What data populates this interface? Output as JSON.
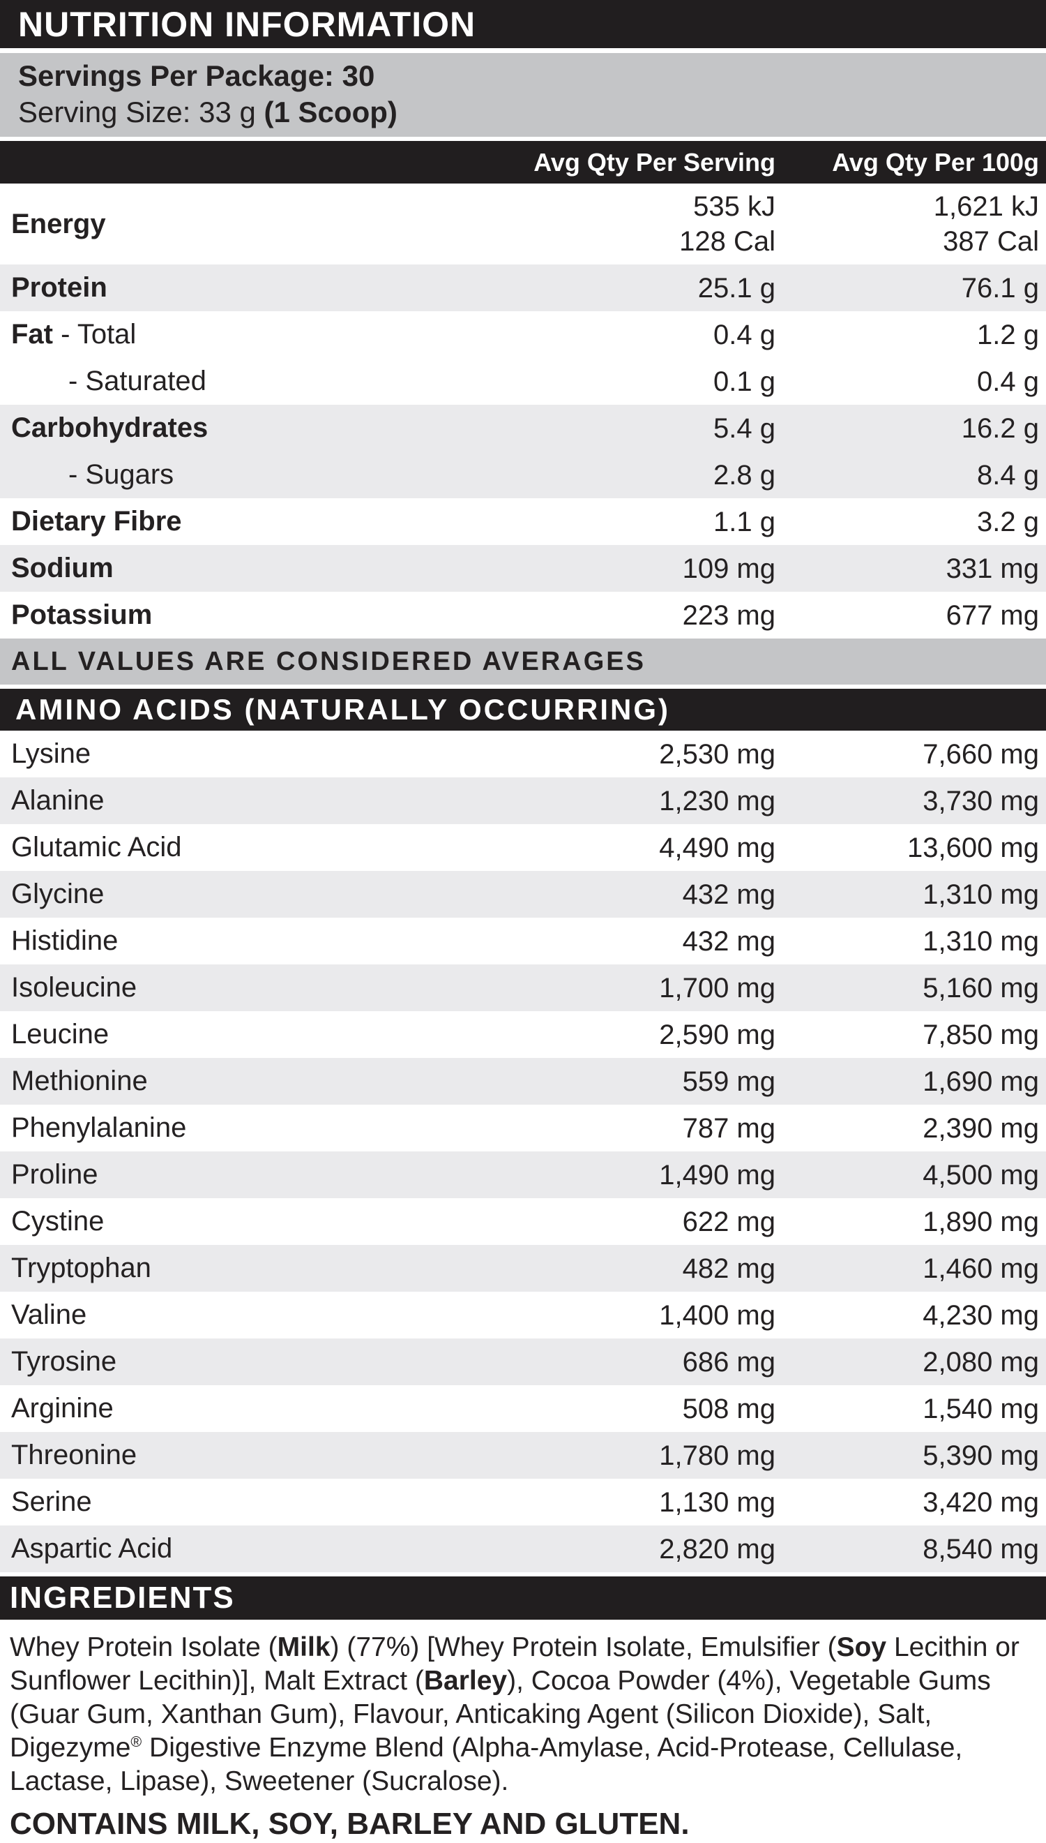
{
  "colors": {
    "band_black": "#211e1f",
    "band_gray": "#c4c5c7",
    "row_shade_gray": "#eaeaec",
    "text": "#242122",
    "background": "#ffffff"
  },
  "title": "NUTRITION INFORMATION",
  "serving_info": {
    "servings_line": [
      {
        "t": "Servings Per Package: 30",
        "b": true
      }
    ],
    "serving_size_line": [
      {
        "t": "Serving Size: 33 g "
      },
      {
        "t": "(1 Scoop)",
        "b": true
      }
    ]
  },
  "columns": {
    "per_serving": "Avg Qty Per Serving",
    "per_100g": "Avg Qty Per 100g"
  },
  "nutrients": [
    {
      "label": [
        {
          "t": "Energy",
          "b": true
        }
      ],
      "indent": false,
      "shade": false,
      "tall": true,
      "per_serving": [
        "535 kJ",
        "128 Cal"
      ],
      "per_100g": [
        "1,621 kJ",
        "387 Cal"
      ]
    },
    {
      "label": [
        {
          "t": "Protein",
          "b": true
        }
      ],
      "indent": false,
      "shade": true,
      "per_serving": [
        "25.1 g"
      ],
      "per_100g": [
        "76.1 g"
      ]
    },
    {
      "label": [
        {
          "t": "Fat",
          "b": true
        },
        {
          "t": " - Total"
        }
      ],
      "indent": false,
      "shade": false,
      "per_serving": [
        "0.4 g"
      ],
      "per_100g": [
        "1.2 g"
      ]
    },
    {
      "label": [
        {
          "t": "- Saturated"
        }
      ],
      "indent": true,
      "shade": false,
      "per_serving": [
        "0.1 g"
      ],
      "per_100g": [
        "0.4 g"
      ]
    },
    {
      "label": [
        {
          "t": "Carbohydrates",
          "b": true
        }
      ],
      "indent": false,
      "shade": true,
      "per_serving": [
        "5.4 g"
      ],
      "per_100g": [
        "16.2 g"
      ]
    },
    {
      "label": [
        {
          "t": "- Sugars"
        }
      ],
      "indent": true,
      "shade": true,
      "per_serving": [
        "2.8 g"
      ],
      "per_100g": [
        "8.4 g"
      ]
    },
    {
      "label": [
        {
          "t": "Dietary Fibre",
          "b": true
        }
      ],
      "indent": false,
      "shade": false,
      "per_serving": [
        "1.1 g"
      ],
      "per_100g": [
        "3.2 g"
      ]
    },
    {
      "label": [
        {
          "t": "Sodium",
          "b": true
        }
      ],
      "indent": false,
      "shade": true,
      "per_serving": [
        "109 mg"
      ],
      "per_100g": [
        "331 mg"
      ]
    },
    {
      "label": [
        {
          "t": "Potassium",
          "b": true
        }
      ],
      "indent": false,
      "shade": false,
      "per_serving": [
        "223 mg"
      ],
      "per_100g": [
        "677 mg"
      ]
    }
  ],
  "averages_note": "ALL VALUES ARE CONSIDERED AVERAGES",
  "amino_acids": {
    "heading": "AMINO ACIDS (NATURALLY OCCURRING)",
    "rows": [
      {
        "name": "Lysine",
        "per_serving": "2,530 mg",
        "per_100g": "7,660 mg"
      },
      {
        "name": "Alanine",
        "per_serving": "1,230 mg",
        "per_100g": "3,730 mg"
      },
      {
        "name": "Glutamic Acid",
        "per_serving": "4,490 mg",
        "per_100g": "13,600 mg"
      },
      {
        "name": "Glycine",
        "per_serving": "432 mg",
        "per_100g": "1,310 mg"
      },
      {
        "name": "Histidine",
        "per_serving": "432 mg",
        "per_100g": "1,310 mg"
      },
      {
        "name": "Isoleucine",
        "per_serving": "1,700 mg",
        "per_100g": "5,160 mg"
      },
      {
        "name": "Leucine",
        "per_serving": "2,590 mg",
        "per_100g": "7,850 mg"
      },
      {
        "name": "Methionine",
        "per_serving": "559 mg",
        "per_100g": "1,690 mg"
      },
      {
        "name": "Phenylalanine",
        "per_serving": "787 mg",
        "per_100g": "2,390 mg"
      },
      {
        "name": "Proline",
        "per_serving": "1,490 mg",
        "per_100g": "4,500 mg"
      },
      {
        "name": "Cystine",
        "per_serving": "622 mg",
        "per_100g": "1,890 mg"
      },
      {
        "name": "Tryptophan",
        "per_serving": "482 mg",
        "per_100g": "1,460 mg"
      },
      {
        "name": "Valine",
        "per_serving": "1,400 mg",
        "per_100g": "4,230 mg"
      },
      {
        "name": "Tyrosine",
        "per_serving": "686 mg",
        "per_100g": "2,080 mg"
      },
      {
        "name": "Arginine",
        "per_serving": "508 mg",
        "per_100g": "1,540 mg"
      },
      {
        "name": "Threonine",
        "per_serving": "1,780 mg",
        "per_100g": "5,390 mg"
      },
      {
        "name": "Serine",
        "per_serving": "1,130 mg",
        "per_100g": "3,420 mg"
      },
      {
        "name": "Aspartic Acid",
        "per_serving": "2,820 mg",
        "per_100g": "8,540 mg"
      }
    ]
  },
  "ingredients": {
    "heading": "INGREDIENTS",
    "segments": [
      {
        "t": "Whey Protein Isolate ("
      },
      {
        "t": "Milk",
        "b": true
      },
      {
        "t": ") (77%) [Whey Protein Isolate, Emulsifier ("
      },
      {
        "t": "Soy",
        "b": true
      },
      {
        "t": " Lecithin or Sunflower Lecithin)], Malt Extract ("
      },
      {
        "t": "Barley",
        "b": true
      },
      {
        "t": "), Cocoa Powder (4%), Vegetable Gums (Guar Gum, Xanthan Gum), Flavour, Anticaking Agent (Silicon Dioxide), Salt, Digezyme"
      },
      {
        "t": "®",
        "sup": true
      },
      {
        "t": " Digestive Enzyme Blend (Alpha-Amylase, Acid-Protease, Cellulase, Lactase, Lipase), Sweetener (Sucralose)."
      }
    ],
    "contains": "CONTAINS MILK, SOY, BARLEY AND GLUTEN."
  }
}
